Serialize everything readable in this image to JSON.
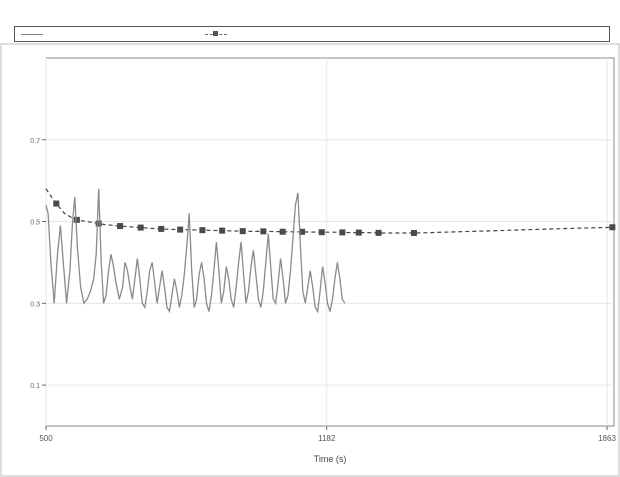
{
  "chart_data": {
    "type": "line",
    "title": "",
    "xlabel": "Time (s)",
    "ylabel": "",
    "x_ticks": [
      "500",
      "1182",
      "1863"
    ],
    "y_ticks": [
      "0.7",
      "0.5",
      "0.3",
      "0.1"
    ],
    "xlim": [
      500,
      1880
    ],
    "ylim": [
      0.0,
      0.9
    ],
    "grid": true,
    "legend_position": "top",
    "series": [
      {
        "name": "",
        "style": "dashed-square",
        "color": "#444444",
        "points": [
          [
            500,
            0.58
          ],
          [
            520,
            0.55
          ],
          [
            545,
            0.52
          ],
          [
            570,
            0.505
          ],
          [
            600,
            0.5
          ],
          [
            640,
            0.493
          ],
          [
            680,
            0.489
          ],
          [
            720,
            0.486
          ],
          [
            760,
            0.483
          ],
          [
            800,
            0.481
          ],
          [
            840,
            0.48
          ],
          [
            880,
            0.479
          ],
          [
            920,
            0.478
          ],
          [
            960,
            0.477
          ],
          [
            1000,
            0.476
          ],
          [
            1040,
            0.476
          ],
          [
            1080,
            0.475
          ],
          [
            1120,
            0.475
          ],
          [
            1160,
            0.474
          ],
          [
            1200,
            0.474
          ],
          [
            1240,
            0.473
          ],
          [
            1280,
            0.473
          ],
          [
            1320,
            0.472
          ],
          [
            1360,
            0.472
          ],
          [
            1400,
            0.472
          ],
          [
            1500,
            0.475
          ],
          [
            1600,
            0.478
          ],
          [
            1700,
            0.481
          ],
          [
            1800,
            0.484
          ],
          [
            1876,
            0.486
          ]
        ],
        "markers_x": [
          525,
          575,
          628,
          680,
          730,
          780,
          826,
          880,
          928,
          978,
          1028,
          1075,
          1122,
          1170,
          1220,
          1260,
          1308,
          1394,
          1876
        ]
      },
      {
        "name": "",
        "style": "solid",
        "color": "#8a8a8a",
        "points": [
          [
            500,
            0.54
          ],
          [
            505,
            0.52
          ],
          [
            512,
            0.4
          ],
          [
            520,
            0.3
          ],
          [
            528,
            0.42
          ],
          [
            535,
            0.49
          ],
          [
            542,
            0.4
          ],
          [
            550,
            0.3
          ],
          [
            558,
            0.38
          ],
          [
            564,
            0.49
          ],
          [
            570,
            0.56
          ],
          [
            576,
            0.44
          ],
          [
            584,
            0.34
          ],
          [
            592,
            0.3
          ],
          [
            600,
            0.31
          ],
          [
            608,
            0.33
          ],
          [
            616,
            0.36
          ],
          [
            622,
            0.42
          ],
          [
            628,
            0.58
          ],
          [
            634,
            0.4
          ],
          [
            640,
            0.3
          ],
          [
            646,
            0.32
          ],
          [
            652,
            0.38
          ],
          [
            658,
            0.42
          ],
          [
            664,
            0.39
          ],
          [
            670,
            0.35
          ],
          [
            678,
            0.31
          ],
          [
            686,
            0.34
          ],
          [
            692,
            0.4
          ],
          [
            698,
            0.38
          ],
          [
            704,
            0.34
          ],
          [
            710,
            0.31
          ],
          [
            716,
            0.36
          ],
          [
            722,
            0.41
          ],
          [
            728,
            0.36
          ],
          [
            734,
            0.3
          ],
          [
            740,
            0.29
          ],
          [
            746,
            0.33
          ],
          [
            752,
            0.38
          ],
          [
            758,
            0.4
          ],
          [
            764,
            0.35
          ],
          [
            770,
            0.3
          ],
          [
            776,
            0.34
          ],
          [
            782,
            0.38
          ],
          [
            788,
            0.34
          ],
          [
            794,
            0.29
          ],
          [
            800,
            0.28
          ],
          [
            806,
            0.32
          ],
          [
            812,
            0.36
          ],
          [
            818,
            0.33
          ],
          [
            824,
            0.29
          ],
          [
            830,
            0.32
          ],
          [
            836,
            0.37
          ],
          [
            842,
            0.44
          ],
          [
            848,
            0.52
          ],
          [
            854,
            0.38
          ],
          [
            860,
            0.29
          ],
          [
            866,
            0.31
          ],
          [
            872,
            0.37
          ],
          [
            878,
            0.4
          ],
          [
            884,
            0.36
          ],
          [
            890,
            0.3
          ],
          [
            896,
            0.28
          ],
          [
            902,
            0.32
          ],
          [
            908,
            0.38
          ],
          [
            914,
            0.45
          ],
          [
            920,
            0.38
          ],
          [
            926,
            0.3
          ],
          [
            932,
            0.33
          ],
          [
            938,
            0.39
          ],
          [
            944,
            0.36
          ],
          [
            950,
            0.31
          ],
          [
            956,
            0.29
          ],
          [
            962,
            0.34
          ],
          [
            968,
            0.4
          ],
          [
            974,
            0.45
          ],
          [
            980,
            0.37
          ],
          [
            986,
            0.3
          ],
          [
            992,
            0.33
          ],
          [
            998,
            0.39
          ],
          [
            1004,
            0.43
          ],
          [
            1010,
            0.37
          ],
          [
            1016,
            0.31
          ],
          [
            1022,
            0.29
          ],
          [
            1028,
            0.33
          ],
          [
            1034,
            0.4
          ],
          [
            1040,
            0.47
          ],
          [
            1046,
            0.39
          ],
          [
            1052,
            0.31
          ],
          [
            1058,
            0.3
          ],
          [
            1064,
            0.35
          ],
          [
            1070,
            0.41
          ],
          [
            1076,
            0.36
          ],
          [
            1082,
            0.3
          ],
          [
            1088,
            0.32
          ],
          [
            1094,
            0.38
          ],
          [
            1100,
            0.46
          ],
          [
            1106,
            0.54
          ],
          [
            1112,
            0.57
          ],
          [
            1118,
            0.44
          ],
          [
            1124,
            0.33
          ],
          [
            1130,
            0.3
          ],
          [
            1136,
            0.34
          ],
          [
            1142,
            0.38
          ],
          [
            1148,
            0.34
          ],
          [
            1154,
            0.29
          ],
          [
            1160,
            0.28
          ],
          [
            1166,
            0.33
          ],
          [
            1172,
            0.39
          ],
          [
            1178,
            0.35
          ],
          [
            1184,
            0.3
          ],
          [
            1190,
            0.28
          ],
          [
            1196,
            0.31
          ],
          [
            1202,
            0.36
          ],
          [
            1208,
            0.4
          ],
          [
            1214,
            0.36
          ],
          [
            1220,
            0.31
          ],
          [
            1226,
            0.3
          ]
        ]
      }
    ]
  }
}
